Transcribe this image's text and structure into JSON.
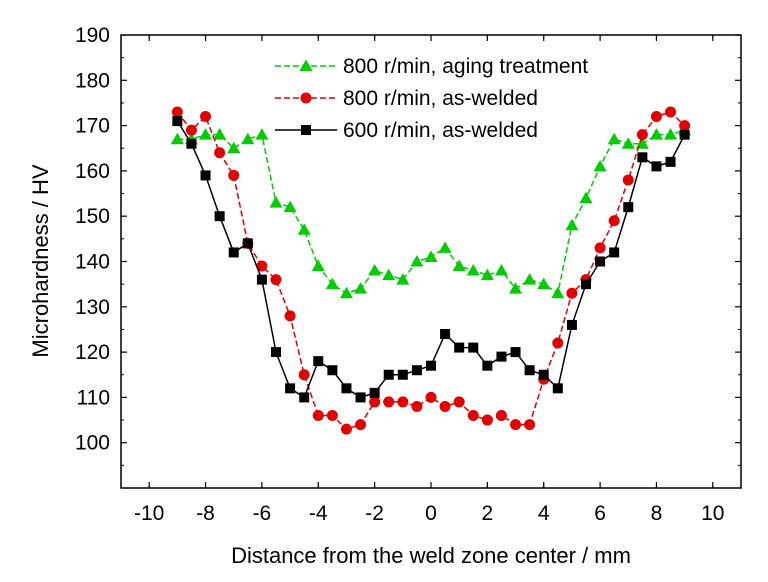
{
  "chart_data": {
    "type": "line",
    "xlabel": "Distance from the weld zone center / mm",
    "ylabel": "Microhardness / HV",
    "xlim": [
      -11,
      11
    ],
    "ylim": [
      90,
      190
    ],
    "xticks": [
      -10,
      -8,
      -6,
      -4,
      -2,
      0,
      2,
      4,
      6,
      8,
      10
    ],
    "yticks": [
      100,
      110,
      120,
      130,
      140,
      150,
      160,
      170,
      180,
      190
    ],
    "legend_position": "top-right",
    "grid": false,
    "series": [
      {
        "name": "800 r/min, aging treatment",
        "color": "#00cc00",
        "marker": "triangle",
        "line_style": "dashed",
        "x": [
          -9,
          -8.5,
          -8,
          -7.5,
          -7,
          -6.5,
          -6,
          -5.5,
          -5,
          -4.5,
          -4,
          -3.5,
          -3,
          -2.5,
          -2,
          -1.5,
          -1,
          -0.5,
          0,
          0.5,
          1,
          1.5,
          2,
          2.5,
          3,
          3.5,
          4,
          4.5,
          5,
          5.5,
          6,
          6.5,
          7,
          7.5,
          8,
          8.5,
          9
        ],
        "y": [
          167,
          167,
          168,
          168,
          165,
          167,
          168,
          153,
          152,
          147,
          139,
          135,
          133,
          134,
          138,
          137,
          136,
          140,
          141,
          143,
          139,
          138,
          137,
          138,
          134,
          136,
          135,
          133,
          148,
          154,
          161,
          167,
          166,
          166,
          168,
          168,
          169
        ]
      },
      {
        "name": "800 r/min, as-welded",
        "color": "#e00000",
        "marker": "circle",
        "line_style": "dashed",
        "x": [
          -9,
          -8.5,
          -8,
          -7.5,
          -7,
          -6.5,
          -6,
          -5.5,
          -5,
          -4.5,
          -4,
          -3.5,
          -3,
          -2.5,
          -2,
          -1.5,
          -1,
          -0.5,
          0,
          0.5,
          1,
          1.5,
          2,
          2.5,
          3,
          3.5,
          4,
          4.5,
          5,
          5.5,
          6,
          6.5,
          7,
          7.5,
          8,
          8.5,
          9
        ],
        "y": [
          173,
          169,
          172,
          164,
          159,
          144,
          139,
          136,
          128,
          115,
          106,
          106,
          103,
          104,
          109,
          109,
          109,
          108,
          110,
          108,
          109,
          106,
          105,
          106,
          104,
          104,
          114,
          122,
          133,
          136,
          143,
          149,
          158,
          168,
          172,
          173,
          170
        ]
      },
      {
        "name": "600 r/min, as-welded",
        "color": "#000000",
        "marker": "square",
        "line_style": "solid",
        "x": [
          -9,
          -8.5,
          -8,
          -7.5,
          -7,
          -6.5,
          -6,
          -5.5,
          -5,
          -4.5,
          -4,
          -3.5,
          -3,
          -2.5,
          -2,
          -1.5,
          -1,
          -0.5,
          0,
          0.5,
          1,
          1.5,
          2,
          2.5,
          3,
          3.5,
          4,
          4.5,
          5,
          5.5,
          6,
          6.5,
          7,
          7.5,
          8,
          8.5,
          9
        ],
        "y": [
          171,
          166,
          159,
          150,
          142,
          144,
          136,
          120,
          112,
          110,
          118,
          116,
          112,
          110,
          111,
          115,
          115,
          116,
          117,
          124,
          121,
          121,
          117,
          119,
          120,
          116,
          115,
          112,
          126,
          135,
          140,
          142,
          152,
          163,
          161,
          162,
          168
        ]
      }
    ]
  }
}
